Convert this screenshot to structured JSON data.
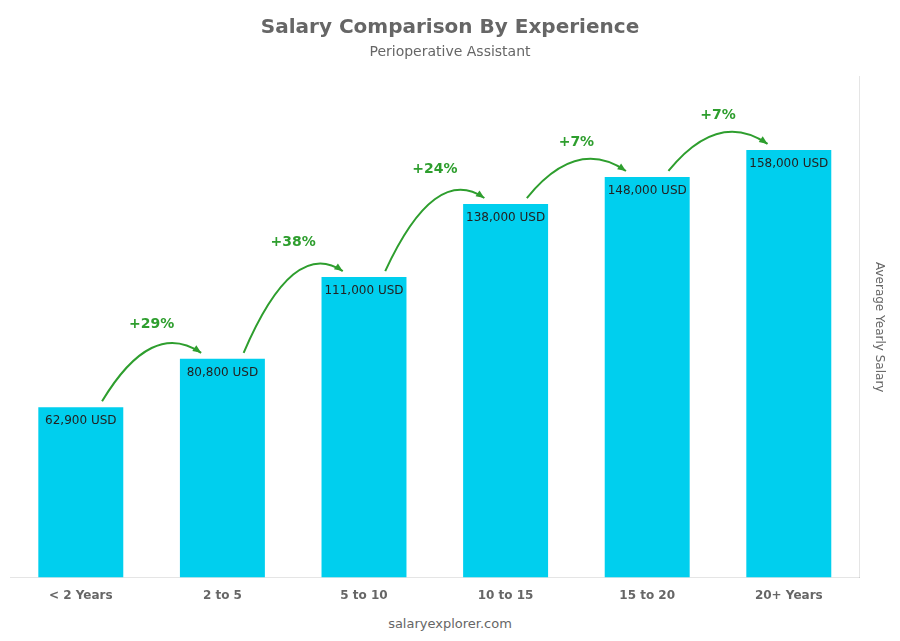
{
  "chart_data": {
    "type": "bar",
    "title": "Salary Comparison By Experience",
    "subtitle": "Perioperative Assistant",
    "categories": [
      "< 2 Years",
      "2 to 5",
      "5 to 10",
      "10 to 15",
      "15 to 20",
      "20+ Years"
    ],
    "values": [
      62900,
      80800,
      111000,
      138000,
      148000,
      158000
    ],
    "value_labels": [
      "62,900 USD",
      "80,800 USD",
      "111,000 USD",
      "138,000 USD",
      "148,000 USD",
      "158,000 USD"
    ],
    "data_labels": true,
    "color": "#00CFEE",
    "ylabel": "Average Yearly Salary",
    "ylim": [
      0,
      185000
    ],
    "annotations": [
      "+29%",
      "+38%",
      "+24%",
      "+7%",
      "+7%"
    ],
    "footer": "salaryexplorer.com",
    "grid": false,
    "tick_labels": "x"
  }
}
